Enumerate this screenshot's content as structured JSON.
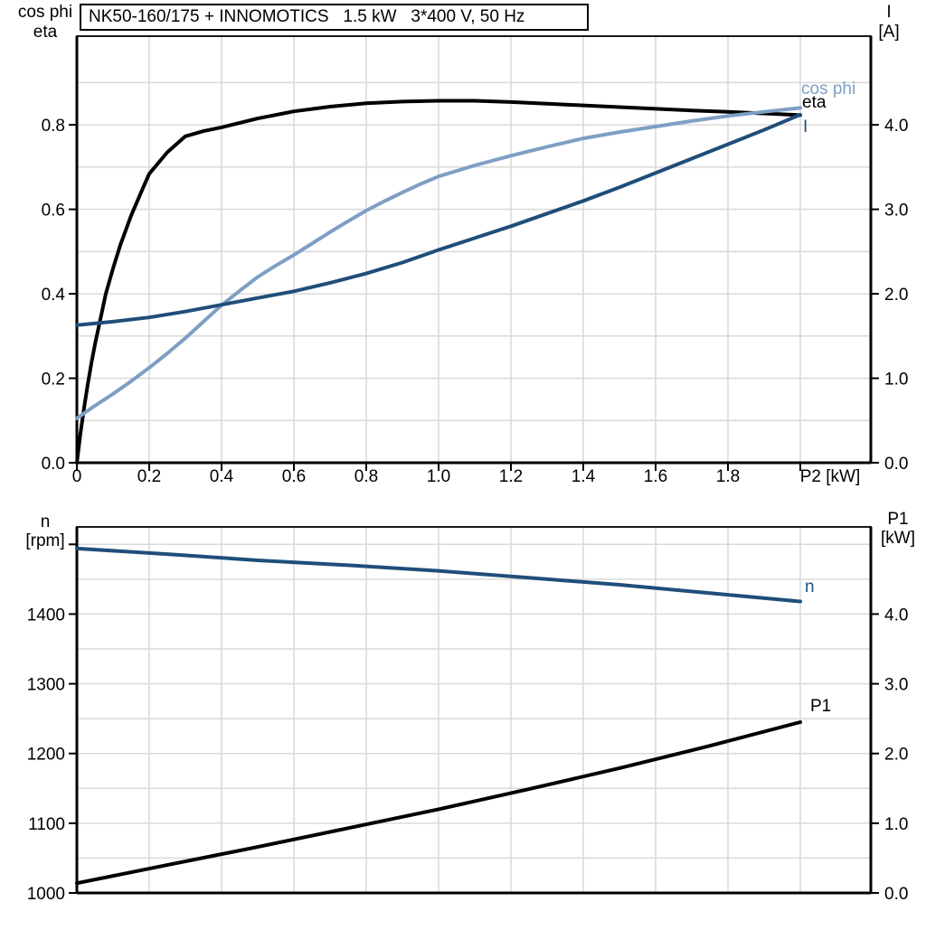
{
  "chart_data": [
    {
      "type": "line",
      "title": "NK50-160/175 + INNOMOTICS   1.5 kW   3*400 V, 50 Hz",
      "left_axis": {
        "header_line1": "cos phi",
        "header_line2": "eta",
        "range": [
          0,
          1.01
        ],
        "tick_values": [
          0,
          0.2,
          0.4,
          0.6,
          0.8
        ],
        "tick_labels": [
          "0.0",
          "0.2",
          "0.4",
          "0.6",
          "0.8"
        ],
        "minor_grid_step": 0.1
      },
      "right_axis": {
        "header_line1": "I",
        "header_line2": "[A]",
        "range": [
          0,
          5.05
        ],
        "tick_values": [
          0,
          1,
          2,
          3,
          4
        ],
        "tick_labels": [
          "0.0",
          "1.0",
          "2.0",
          "3.0",
          "4.0"
        ]
      },
      "x_axis": {
        "label": "P2 [kW]",
        "range": [
          0,
          2.195
        ],
        "grid_step": 0.2,
        "tick_values": [
          0,
          0.2,
          0.4,
          0.6,
          0.8,
          1.0,
          1.2,
          1.4,
          1.6,
          1.8,
          2.0
        ],
        "tick_labels": [
          "0",
          "0.2",
          "0.4",
          "0.6",
          "0.8",
          "1.0",
          "1.2",
          "1.4",
          "1.6",
          "1.8",
          ""
        ]
      },
      "series": [
        {
          "name": "eta",
          "axis": "left",
          "color": "#000000",
          "points": [
            [
              0,
              0
            ],
            [
              0.01,
              0.07
            ],
            [
              0.02,
              0.13
            ],
            [
              0.03,
              0.185
            ],
            [
              0.04,
              0.235
            ],
            [
              0.05,
              0.28
            ],
            [
              0.06,
              0.32
            ],
            [
              0.07,
              0.36
            ],
            [
              0.08,
              0.4
            ],
            [
              0.09,
              0.43
            ],
            [
              0.1,
              0.46
            ],
            [
              0.12,
              0.515
            ],
            [
              0.15,
              0.585
            ],
            [
              0.18,
              0.645
            ],
            [
              0.2,
              0.684
            ],
            [
              0.25,
              0.735
            ],
            [
              0.3,
              0.773
            ],
            [
              0.35,
              0.785
            ],
            [
              0.4,
              0.794
            ],
            [
              0.5,
              0.815
            ],
            [
              0.6,
              0.832
            ],
            [
              0.7,
              0.843
            ],
            [
              0.8,
              0.851
            ],
            [
              0.9,
              0.855
            ],
            [
              1.0,
              0.857
            ],
            [
              1.1,
              0.857
            ],
            [
              1.2,
              0.854
            ],
            [
              1.3,
              0.85
            ],
            [
              1.4,
              0.846
            ],
            [
              1.5,
              0.842
            ],
            [
              1.6,
              0.838
            ],
            [
              1.7,
              0.834
            ],
            [
              1.8,
              0.831
            ],
            [
              1.9,
              0.827
            ],
            [
              2.0,
              0.823
            ]
          ]
        },
        {
          "name": "cos phi",
          "axis": "left",
          "color": "#7E9FC4",
          "points": [
            [
              0,
              0.105
            ],
            [
              0.05,
              0.135
            ],
            [
              0.1,
              0.163
            ],
            [
              0.15,
              0.193
            ],
            [
              0.2,
              0.225
            ],
            [
              0.25,
              0.259
            ],
            [
              0.3,
              0.295
            ],
            [
              0.35,
              0.334
            ],
            [
              0.4,
              0.373
            ],
            [
              0.45,
              0.407
            ],
            [
              0.5,
              0.44
            ],
            [
              0.55,
              0.467
            ],
            [
              0.6,
              0.492
            ],
            [
              0.65,
              0.519
            ],
            [
              0.7,
              0.546
            ],
            [
              0.75,
              0.572
            ],
            [
              0.8,
              0.597
            ],
            [
              0.85,
              0.619
            ],
            [
              0.9,
              0.64
            ],
            [
              0.95,
              0.66
            ],
            [
              1.0,
              0.678
            ],
            [
              1.1,
              0.704
            ],
            [
              1.2,
              0.727
            ],
            [
              1.3,
              0.748
            ],
            [
              1.4,
              0.768
            ],
            [
              1.5,
              0.783
            ],
            [
              1.6,
              0.796
            ],
            [
              1.7,
              0.809
            ],
            [
              1.8,
              0.821
            ],
            [
              1.9,
              0.831
            ],
            [
              2.0,
              0.84
            ]
          ]
        },
        {
          "name": "I",
          "axis": "right",
          "color": "#1F4E79",
          "points": [
            [
              0,
              1.63
            ],
            [
              0.1,
              1.67
            ],
            [
              0.2,
              1.72
            ],
            [
              0.3,
              1.79
            ],
            [
              0.4,
              1.87
            ],
            [
              0.5,
              1.95
            ],
            [
              0.6,
              2.03
            ],
            [
              0.7,
              2.13
            ],
            [
              0.8,
              2.24
            ],
            [
              0.9,
              2.37
            ],
            [
              1.0,
              2.52
            ],
            [
              1.1,
              2.66
            ],
            [
              1.2,
              2.8
            ],
            [
              1.3,
              2.95
            ],
            [
              1.4,
              3.1
            ],
            [
              1.5,
              3.26
            ],
            [
              1.6,
              3.43
            ],
            [
              1.7,
              3.6
            ],
            [
              1.8,
              3.77
            ],
            [
              1.9,
              3.94
            ],
            [
              2.0,
              4.12
            ]
          ]
        }
      ]
    },
    {
      "type": "line",
      "title": "",
      "left_axis": {
        "header_line1": "n",
        "header_line2": "[rpm]",
        "range": [
          1000,
          1525
        ],
        "tick_values": [
          1000,
          1100,
          1200,
          1300,
          1400,
          1500
        ],
        "tick_labels": [
          "1000",
          "1100",
          "1200",
          "1300",
          "1400",
          ""
        ],
        "minor_grid_step": 50
      },
      "right_axis": {
        "header_line1": "P1",
        "header_line2": "[kW]",
        "range": [
          0,
          5.25
        ],
        "tick_values": [
          0,
          1,
          2,
          3,
          4
        ],
        "tick_labels": [
          "0.0",
          "1.0",
          "2.0",
          "3.0",
          "4.0"
        ]
      },
      "x_axis": {
        "label": "",
        "range": [
          0,
          2.195
        ],
        "grid_step": 0.2,
        "tick_values": [],
        "tick_labels": []
      },
      "series": [
        {
          "name": "n",
          "axis": "left",
          "color": "#1F4E79",
          "points": [
            [
              0,
              1494
            ],
            [
              0.25,
              1486
            ],
            [
              0.5,
              1477
            ],
            [
              0.75,
              1470
            ],
            [
              1.0,
              1462
            ],
            [
              1.25,
              1452
            ],
            [
              1.5,
              1442
            ],
            [
              1.75,
              1430
            ],
            [
              2.0,
              1418
            ]
          ]
        },
        {
          "name": "P1",
          "axis": "right",
          "color": "#000000",
          "points": [
            [
              0,
              0.14
            ],
            [
              0.25,
              0.4
            ],
            [
              0.5,
              0.66
            ],
            [
              0.75,
              0.93
            ],
            [
              1.0,
              1.2
            ],
            [
              1.25,
              1.49
            ],
            [
              1.5,
              1.79
            ],
            [
              1.75,
              2.11
            ],
            [
              2.0,
              2.45
            ]
          ]
        }
      ]
    }
  ],
  "colors": {
    "grid": "#D9D9D9",
    "axis": "#000000",
    "dark_blue": "#1F4E79",
    "light_blue": "#7E9FC4"
  }
}
